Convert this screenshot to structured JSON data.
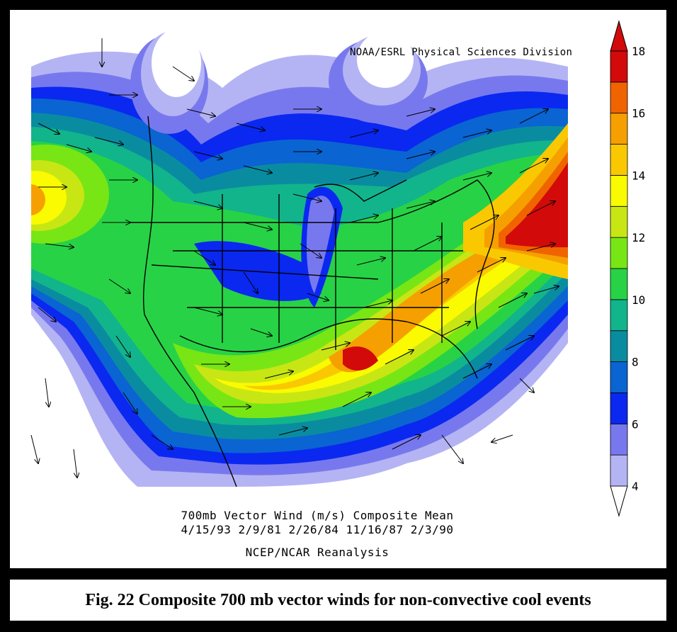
{
  "header": {
    "credit": "NOAA/ESRL Physical Sciences Division"
  },
  "plot": {
    "title_line1": "700mb Vector Wind (m/s) Composite Mean",
    "title_line2": "4/15/93 2/9/81 2/26/84 11/16/87 2/3/90",
    "source": "NCEP/NCAR Reanalysis"
  },
  "colorbar": {
    "labels": [
      "4",
      "6",
      "8",
      "10",
      "12",
      "14",
      "16",
      "18"
    ],
    "colors": [
      "#b4b4f4",
      "#7878ee",
      "#0a28f0",
      "#0a64d2",
      "#0a8ca0",
      "#12b48c",
      "#28d246",
      "#78e614",
      "#c8e614",
      "#fafa00",
      "#fac800",
      "#f5a000",
      "#f06400",
      "#d20a0a"
    ],
    "min": 4,
    "max": 18,
    "step": 1
  },
  "caption": {
    "text": "Fig. 22 Composite 700 mb vector winds for non-convective cool events"
  }
}
